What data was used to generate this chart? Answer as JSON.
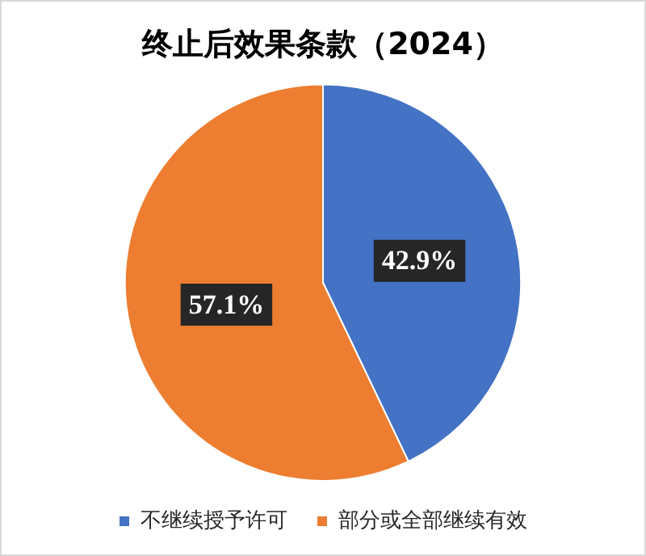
{
  "chart_data": {
    "type": "pie",
    "title": "终止后效果条款（2024）",
    "categories": [
      "不继续授予许可",
      "部分或全部继续有效"
    ],
    "values": [
      42.9,
      57.1
    ],
    "colors": [
      "#4472c4",
      "#ed7d31"
    ],
    "value_labels": [
      "42.9%",
      "57.1%"
    ],
    "legend": "bottom"
  }
}
